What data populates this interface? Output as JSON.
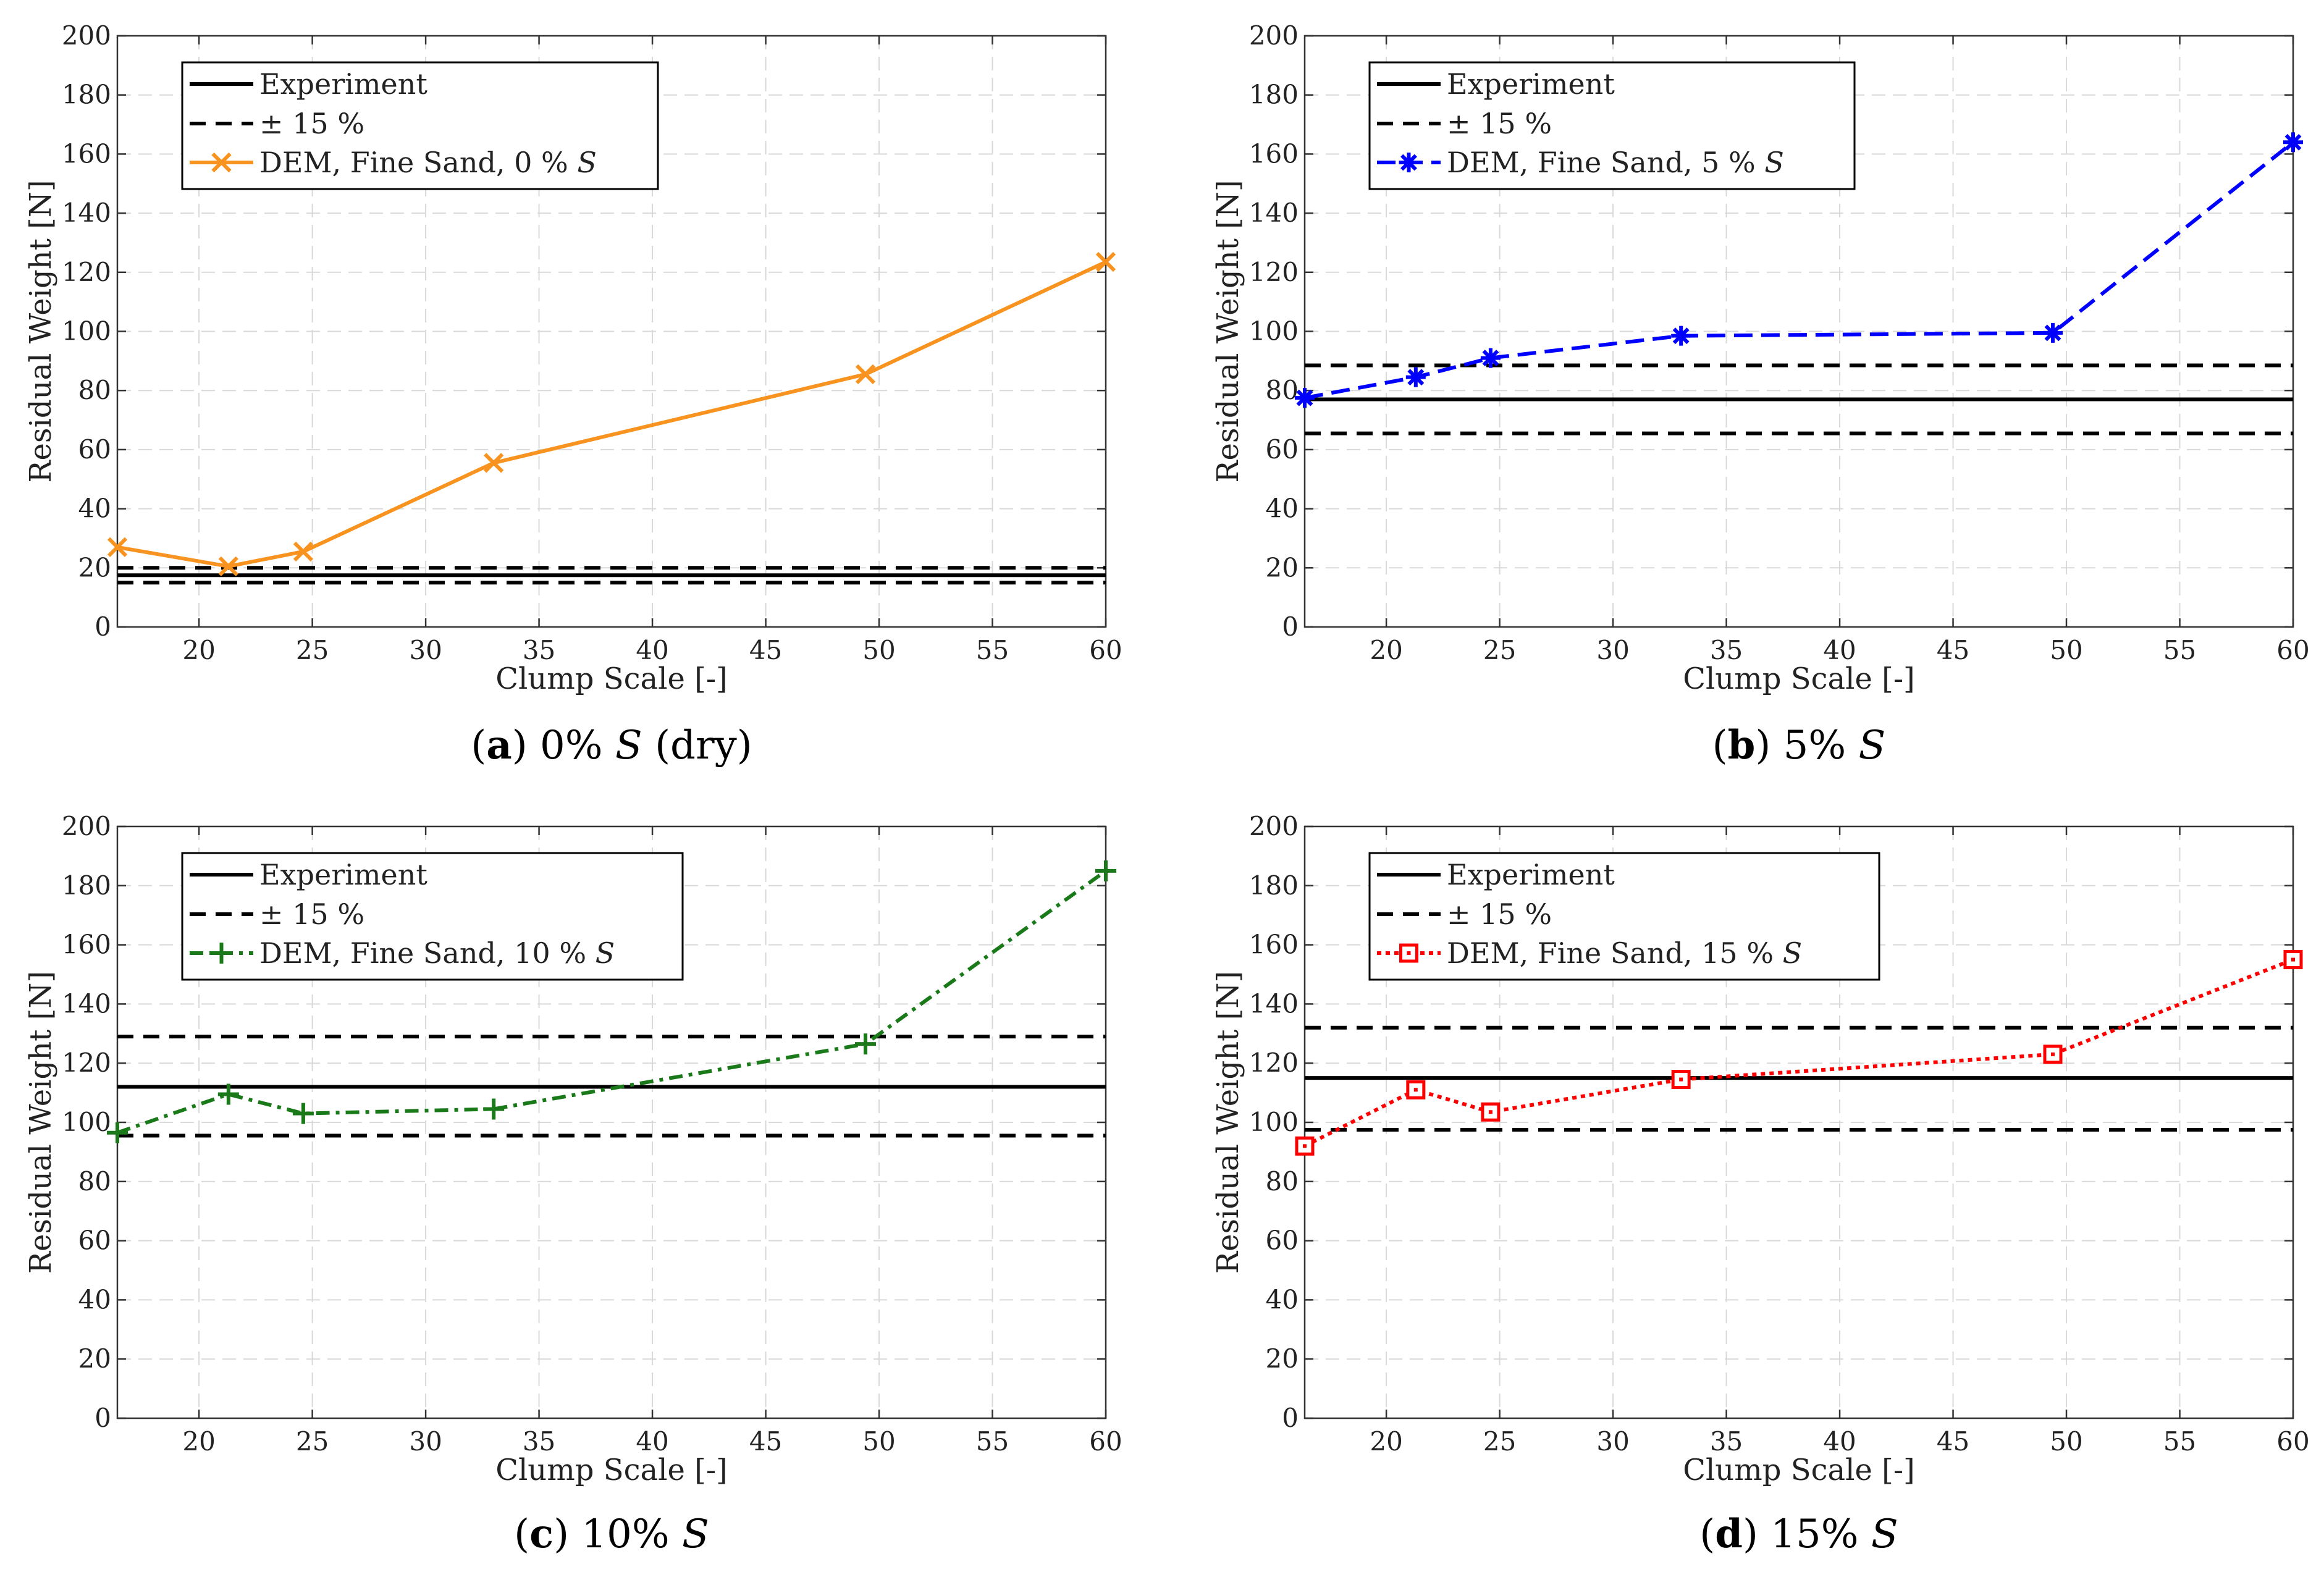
{
  "chart_data": [
    {
      "type": "line",
      "panel": "a",
      "caption": {
        "letter": "a",
        "text": "0% S (dry)"
      },
      "xlabel": "Clump Scale [-]",
      "ylabel": "Residual Weight [N]",
      "xlim": [
        16.4,
        60
      ],
      "ylim": [
        0,
        200
      ],
      "xticks": [
        20,
        25,
        30,
        35,
        40,
        45,
        50,
        55,
        60
      ],
      "yticks": [
        0,
        20,
        40,
        60,
        80,
        100,
        120,
        140,
        160,
        180,
        200
      ],
      "grid": true,
      "legend_position": "top-left",
      "experiment": 17.5,
      "band": [
        15,
        20
      ],
      "legend": {
        "experiment": "Experiment",
        "band": "± 15 %",
        "dem": "DEM, Fine Sand, 0 % S"
      },
      "series": [
        {
          "name": "DEM, Fine Sand, 0 % S",
          "color": "#f7931e",
          "dash": "solid",
          "marker": "x",
          "x": [
            16.4,
            21.3,
            24.6,
            33,
            49.4,
            60
          ],
          "y": [
            27,
            20.5,
            25.5,
            55.5,
            85.5,
            123.5
          ]
        }
      ]
    },
    {
      "type": "line",
      "panel": "b",
      "caption": {
        "letter": "b",
        "text": "5% S"
      },
      "xlabel": "Clump Scale [-]",
      "ylabel": "Residual Weight [N]",
      "xlim": [
        16.4,
        60
      ],
      "ylim": [
        0,
        200
      ],
      "xticks": [
        20,
        25,
        30,
        35,
        40,
        45,
        50,
        55,
        60
      ],
      "yticks": [
        0,
        20,
        40,
        60,
        80,
        100,
        120,
        140,
        160,
        180,
        200
      ],
      "grid": true,
      "legend_position": "top-left",
      "experiment": 77,
      "band": [
        65.5,
        88.5
      ],
      "legend": {
        "experiment": "Experiment",
        "band": "± 15 %",
        "dem": "DEM, Fine Sand, 5 % S"
      },
      "series": [
        {
          "name": "DEM, Fine Sand, 5 % S",
          "color": "#0000ff",
          "dash": "dashed",
          "marker": "asterisk",
          "x": [
            16.4,
            21.3,
            24.6,
            33,
            49.4,
            60
          ],
          "y": [
            77.5,
            84.5,
            91,
            98.5,
            99.5,
            164
          ]
        }
      ]
    },
    {
      "type": "line",
      "panel": "c",
      "caption": {
        "letter": "c",
        "text": "10% S"
      },
      "xlabel": "Clump Scale [-]",
      "ylabel": "Residual Weight [N]",
      "xlim": [
        16.4,
        60
      ],
      "ylim": [
        0,
        200
      ],
      "xticks": [
        20,
        25,
        30,
        35,
        40,
        45,
        50,
        55,
        60
      ],
      "yticks": [
        0,
        20,
        40,
        60,
        80,
        100,
        120,
        140,
        160,
        180,
        200
      ],
      "grid": true,
      "legend_position": "top-left",
      "experiment": 112,
      "band": [
        95.5,
        129
      ],
      "legend": {
        "experiment": "Experiment",
        "band": "± 15 %",
        "dem": "DEM, Fine Sand, 10 % S"
      },
      "series": [
        {
          "name": "DEM, Fine Sand, 10 % S",
          "color": "#1a7a1a",
          "dash": "dashdot",
          "marker": "plus",
          "x": [
            16.4,
            21.3,
            24.6,
            33,
            49.4,
            60
          ],
          "y": [
            96.5,
            109.5,
            103,
            104.5,
            126.5,
            185
          ]
        }
      ]
    },
    {
      "type": "line",
      "panel": "d",
      "caption": {
        "letter": "d",
        "text": "15% S"
      },
      "xlabel": "Clump Scale [-]",
      "ylabel": "Residual Weight [N]",
      "xlim": [
        16.4,
        60
      ],
      "ylim": [
        0,
        200
      ],
      "xticks": [
        20,
        25,
        30,
        35,
        40,
        45,
        50,
        55,
        60
      ],
      "yticks": [
        0,
        20,
        40,
        60,
        80,
        100,
        120,
        140,
        160,
        180,
        200
      ],
      "grid": true,
      "legend_position": "top-left",
      "experiment": 115,
      "band": [
        97.5,
        132
      ],
      "legend": {
        "experiment": "Experiment",
        "band": "± 15 %",
        "dem": "DEM, Fine Sand, 15 % S"
      },
      "series": [
        {
          "name": "DEM, Fine Sand, 15 % S",
          "color": "#ff0000",
          "dash": "dotted",
          "marker": "square",
          "x": [
            16.4,
            21.3,
            24.6,
            33,
            49.4,
            60
          ],
          "y": [
            92,
            111,
            103.5,
            114.5,
            123,
            155
          ]
        }
      ]
    }
  ]
}
